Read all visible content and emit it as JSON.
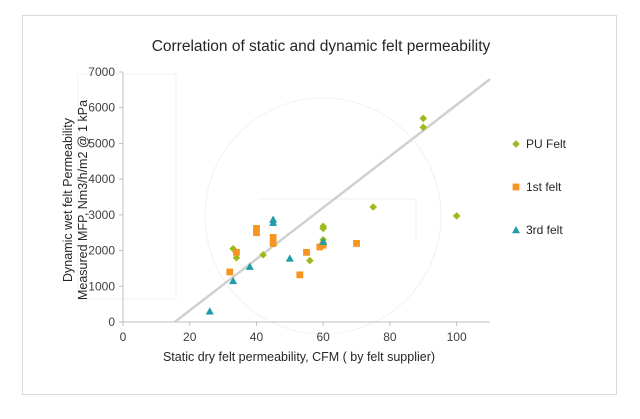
{
  "chart_data": {
    "type": "scatter",
    "title": "Correlation of static and dynamic felt permeability",
    "xlabel": "Static dry felt permeability, CFM ( by felt supplier)",
    "ylabel_lines": [
      "Dynamic wet  felt Permeability",
      "Measured MFP, Nm3/h/m2 @ 1 kPa"
    ],
    "xlim": [
      0,
      110
    ],
    "ylim": [
      0,
      7000
    ],
    "x_ticks": [
      "0",
      "20",
      "40",
      "60",
      "80",
      "100"
    ],
    "y_ticks": [
      "0",
      "1000",
      "2000",
      "3000",
      "4000",
      "5000",
      "6000",
      "7000"
    ],
    "grid": false,
    "legend_position": "right",
    "series": [
      {
        "name": "PU Felt",
        "marker": "diamond",
        "color": "#9bbb1c",
        "points": [
          [
            33,
            2050
          ],
          [
            34,
            1800
          ],
          [
            42,
            1880
          ],
          [
            45,
            2200
          ],
          [
            56,
            1720
          ],
          [
            60,
            2620
          ],
          [
            60,
            2680
          ],
          [
            60,
            2200
          ],
          [
            60,
            2300
          ],
          [
            75,
            3220
          ],
          [
            90,
            5700
          ],
          [
            90,
            5450
          ],
          [
            100,
            2970
          ]
        ]
      },
      {
        "name": "1st felt",
        "marker": "square",
        "color": "#f79522",
        "points": [
          [
            32,
            1400
          ],
          [
            34,
            1950
          ],
          [
            40,
            2500
          ],
          [
            40,
            2620
          ],
          [
            45,
            2370
          ],
          [
            45,
            2200
          ],
          [
            53,
            1320
          ],
          [
            55,
            1950
          ],
          [
            59,
            2100
          ],
          [
            60,
            2150
          ],
          [
            70,
            2200
          ]
        ]
      },
      {
        "name": "3rd felt",
        "marker": "triangle",
        "color": "#1e9ca8",
        "points": [
          [
            26,
            300
          ],
          [
            33,
            1150
          ],
          [
            38,
            1550
          ],
          [
            45,
            2780
          ],
          [
            45,
            2870
          ],
          [
            50,
            1780
          ],
          [
            60,
            2250
          ]
        ]
      }
    ],
    "trendline": {
      "color": "#d0d0d0",
      "from": [
        15.5,
        0
      ],
      "to": [
        110,
        6800
      ]
    }
  }
}
